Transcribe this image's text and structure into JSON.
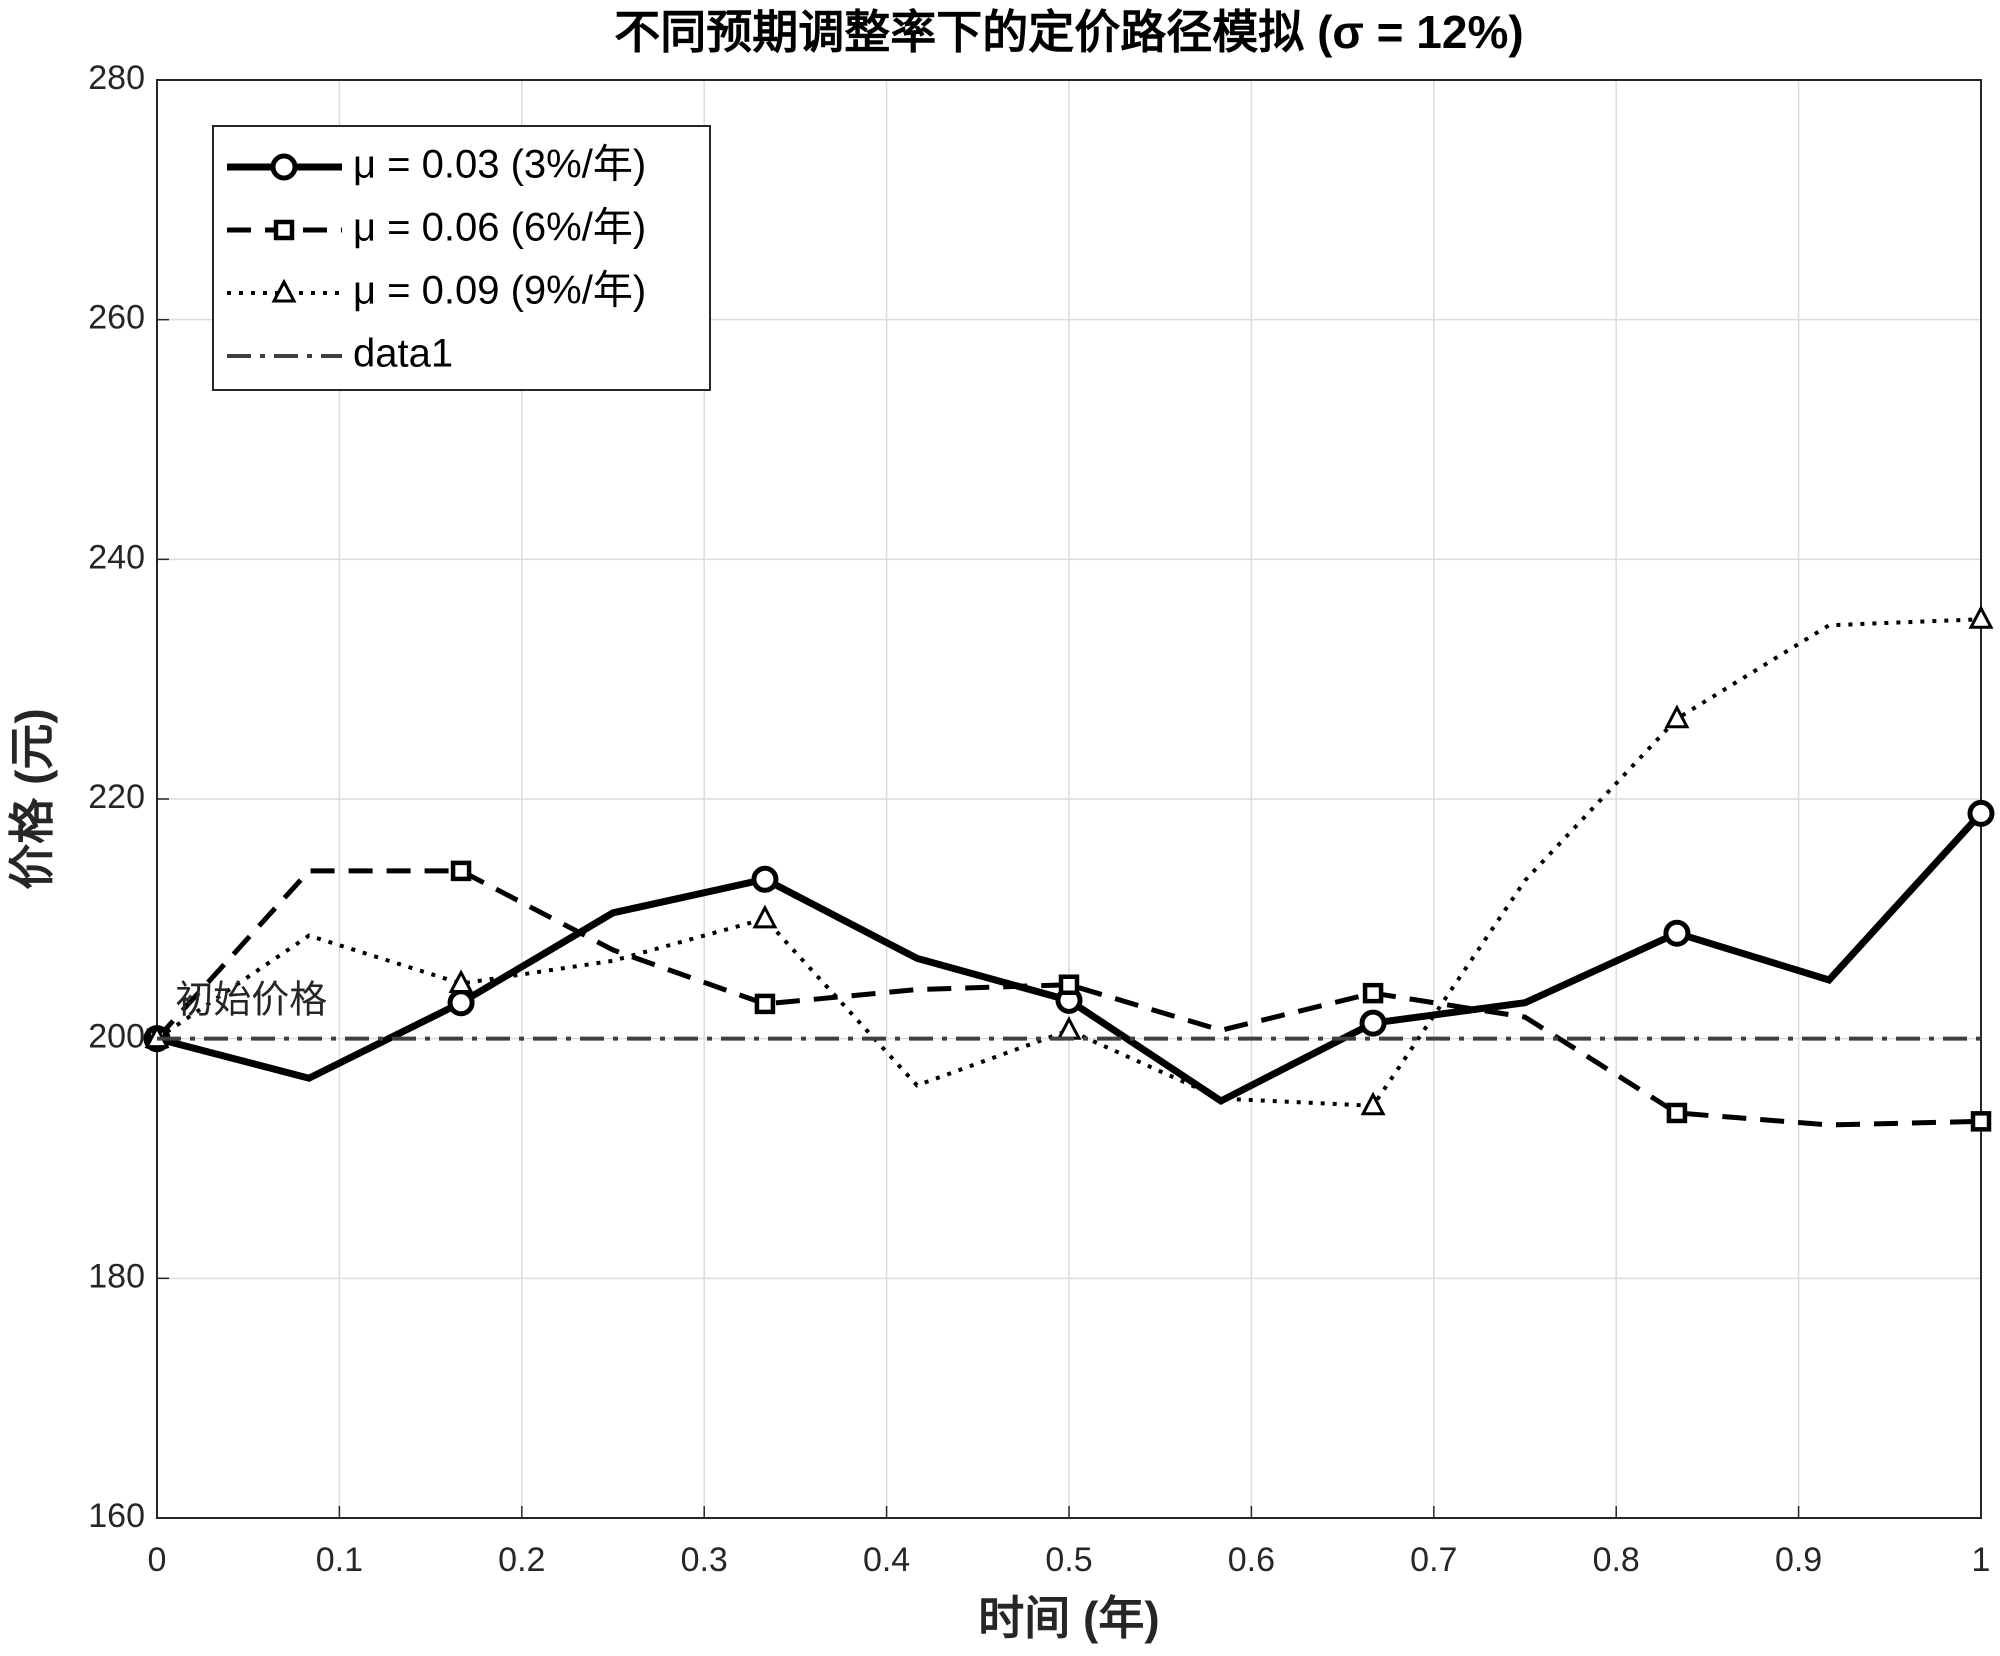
{
  "chart_data": {
    "type": "line",
    "title": "不同预期调整率下的定价路径模拟 (σ = 12%)",
    "xlabel": "时间 (年)",
    "ylabel": "价格 (元)",
    "x": [
      0,
      0.0833,
      0.1667,
      0.25,
      0.3333,
      0.4167,
      0.5,
      0.5833,
      0.6667,
      0.75,
      0.8333,
      0.9167,
      1
    ],
    "series": [
      {
        "name": "μ = 0.03 (3%/年)",
        "color": "#000000",
        "linestyle": "solid",
        "marker": "circle",
        "marker_every": 2,
        "values": [
          200,
          196.7,
          203.0,
          210.5,
          213.3,
          206.7,
          203.2,
          194.8,
          201.3,
          203.0,
          208.8,
          204.9,
          218.8
        ]
      },
      {
        "name": "μ = 0.06 (6%/年)",
        "color": "#000000",
        "linestyle": "dashed",
        "marker": "square",
        "marker_every": 2,
        "values": [
          200,
          214.0,
          214.0,
          207.4,
          202.9,
          204.1,
          204.5,
          200.7,
          203.8,
          201.8,
          193.8,
          192.8,
          193.1
        ]
      },
      {
        "name": "μ = 0.09 (9%/年)",
        "color": "#000000",
        "linestyle": "dotted",
        "marker": "triangle",
        "marker_every": 2,
        "values": [
          200,
          208.6,
          204.6,
          206.5,
          210.0,
          196.1,
          200.7,
          195.0,
          194.4,
          213.2,
          226.7,
          234.5,
          235.0
        ]
      },
      {
        "name": "data1",
        "color": "#404040",
        "linestyle": "dashdot",
        "marker": "none",
        "x": [
          0,
          1
        ],
        "values": [
          200,
          200
        ]
      }
    ],
    "annotations": [
      {
        "text": "初始价格",
        "x": 0.01,
        "y": 203
      }
    ],
    "xlim": [
      0,
      1
    ],
    "xticks": [
      0,
      0.1,
      0.2,
      0.3,
      0.4,
      0.5,
      0.6,
      0.7,
      0.8,
      0.9,
      1
    ],
    "ylim": [
      160,
      280
    ],
    "yticks": [
      160,
      180,
      200,
      220,
      240,
      260,
      280
    ],
    "grid": true,
    "legend": "upper left"
  }
}
